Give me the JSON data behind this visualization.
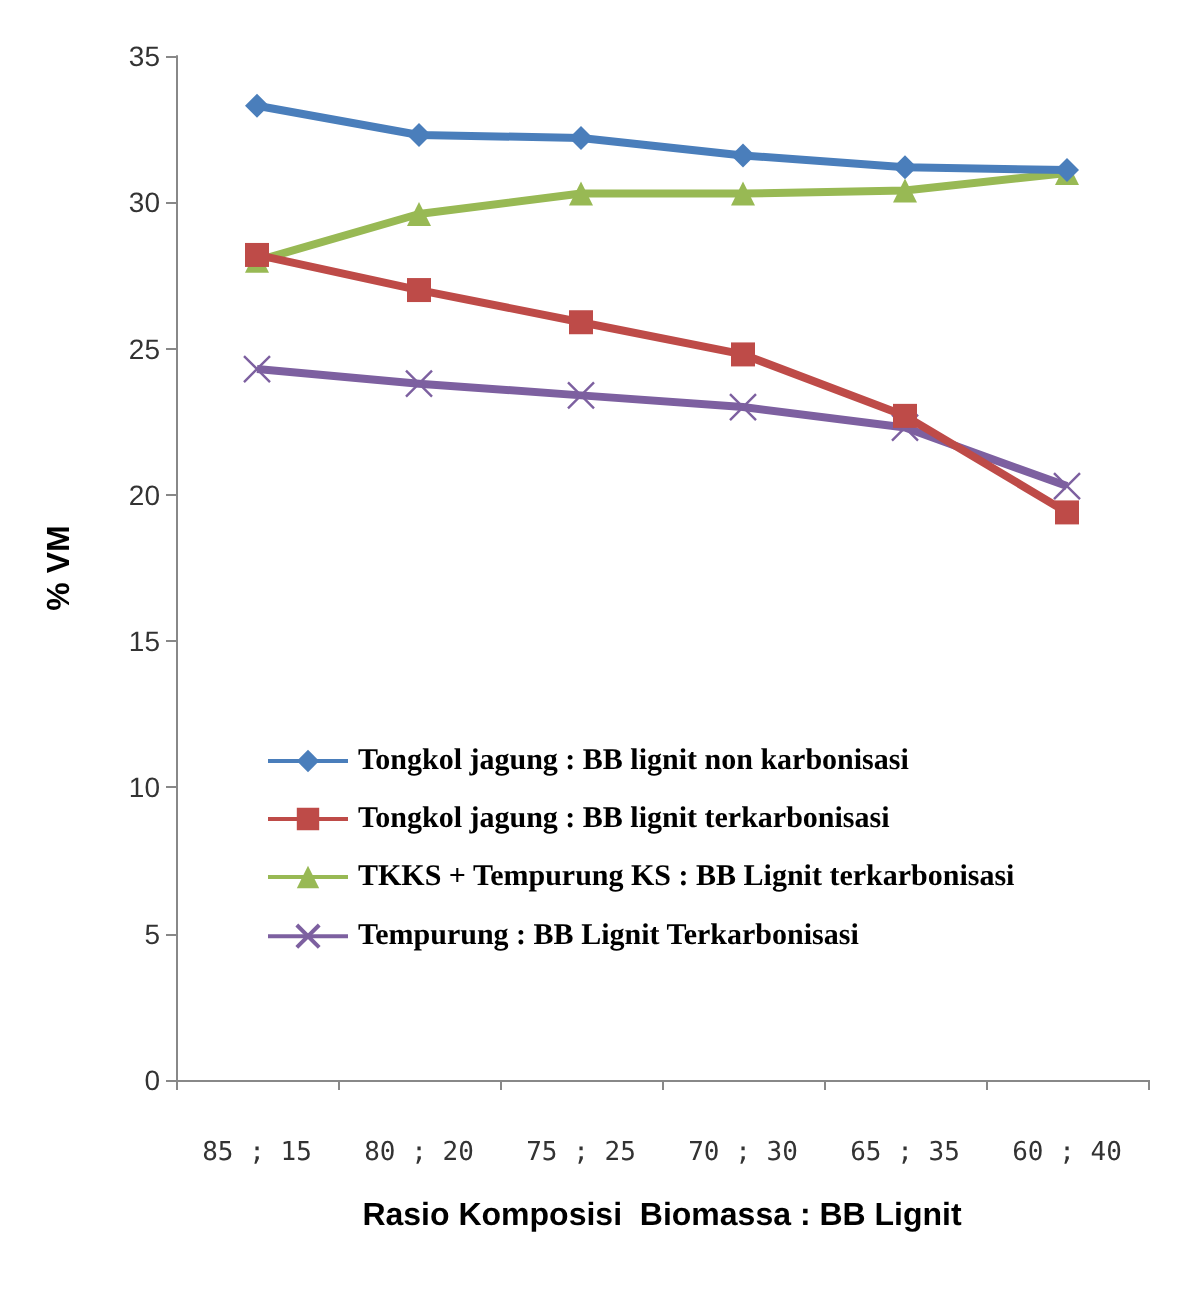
{
  "chart_data": {
    "type": "line",
    "xlabel": "Rasio Komposisi  Biomassa : BB Lignit",
    "ylabel": "% VM",
    "categories": [
      "85 ; 15",
      "80 ; 20",
      "75 ; 25",
      "70 ; 30",
      "65 ; 35",
      "60 ; 40"
    ],
    "series": [
      {
        "name": "Tongkol jagung : BB lignit non karbonisasi",
        "color": "#4a7ebb",
        "marker": "diamond",
        "values": [
          33.3,
          32.3,
          32.2,
          31.6,
          31.2,
          31.1
        ]
      },
      {
        "name": "Tongkol jagung : BB lignit terkarbonisasi",
        "color": "#be4b48",
        "marker": "square",
        "values": [
          28.2,
          27.0,
          25.9,
          24.8,
          22.7,
          19.4
        ]
      },
      {
        "name": "TKKS + Tempurung KS : BB Lignit terkarbonisasi",
        "color": "#98b954",
        "marker": "triangle",
        "values": [
          28.0,
          29.6,
          30.3,
          30.3,
          30.4,
          31.0
        ]
      },
      {
        "name": "Tempurung : BB Lignit Terkarbonisasi",
        "color": "#7d60a0",
        "marker": "cross",
        "values": [
          24.3,
          23.8,
          23.4,
          23.0,
          22.3,
          20.3
        ]
      }
    ],
    "ylim": [
      0,
      35
    ],
    "yticks": [
      0,
      5,
      10,
      15,
      20,
      25,
      30,
      35
    ],
    "grid": false,
    "legend": "left"
  }
}
